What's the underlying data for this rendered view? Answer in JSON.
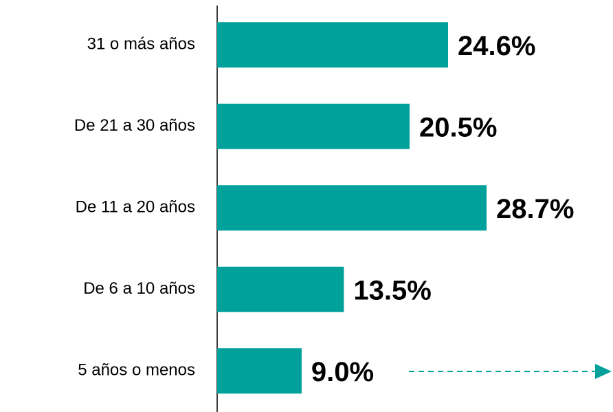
{
  "chart_data": {
    "type": "barh",
    "categories": [
      "31 o más años",
      "De 21 a 30 años",
      "De 11 a 20 años",
      "De 6 a 10 años",
      "5 años o menos"
    ],
    "values": [
      24.6,
      20.5,
      28.7,
      13.5,
      9.0
    ],
    "value_labels": [
      "24.6%",
      "20.5%",
      "28.7%",
      "13.5%",
      "9.0%"
    ],
    "color": "#00a19a"
  }
}
